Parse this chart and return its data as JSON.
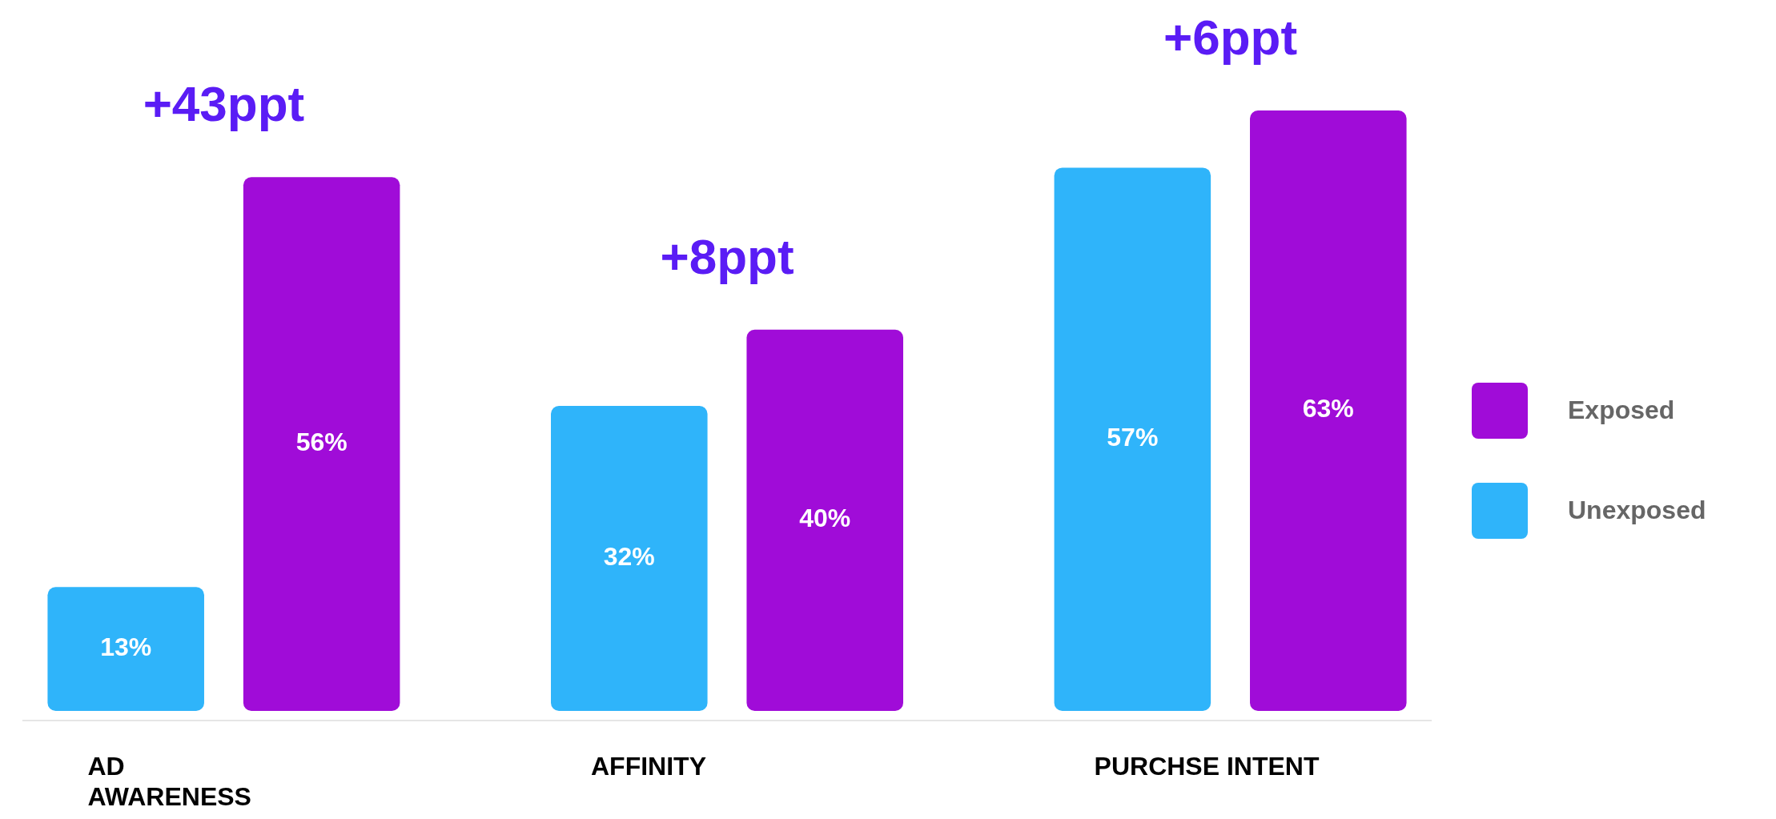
{
  "chart_data": {
    "type": "bar",
    "categories": [
      "AD AWARENESS",
      "AFFINITY",
      "PURCHSE INTENT"
    ],
    "series": [
      {
        "name": "Unexposed",
        "color": "#2fb4fa",
        "values": [
          13,
          32,
          57
        ],
        "value_labels": [
          "13%",
          "32%",
          "57%"
        ]
      },
      {
        "name": "Exposed",
        "color": "#a00cd8",
        "values": [
          56,
          40,
          63
        ],
        "value_labels": [
          "56%",
          "40%",
          "63%"
        ]
      }
    ],
    "legend": "right",
    "annotations": [
      "+43ppt",
      "+8ppt",
      "+6ppt"
    ]
  }
}
